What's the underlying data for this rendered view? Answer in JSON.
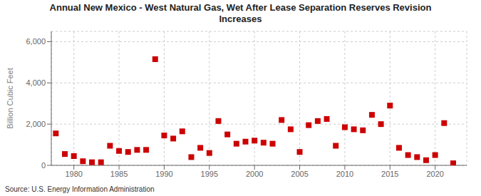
{
  "chart_data": {
    "type": "scatter",
    "title": "Annual New Mexico - West Natural Gas, Wet After Lease Separation Reserves Revision\nIncreases",
    "ylabel": "Billion Cubic Feet",
    "annotations": [
      "Source: U.S. Energy Information Administration"
    ],
    "color": "#cc0000",
    "marker": "square",
    "grid": true,
    "xlim": [
      1977.5,
      2023.5
    ],
    "ylim": [
      0,
      6500
    ],
    "xticks": [
      1980,
      1985,
      1990,
      1995,
      2000,
      2005,
      2010,
      2015,
      2020
    ],
    "yticks": [
      0,
      {
        "value": 2000,
        "label": "2,000"
      },
      {
        "value": 4000,
        "label": "4,000"
      },
      {
        "value": 6000,
        "label": "6,000"
      }
    ],
    "x": [
      1978,
      1979,
      1980,
      1981,
      1982,
      1983,
      1984,
      1985,
      1986,
      1987,
      1988,
      1989,
      1990,
      1991,
      1992,
      1993,
      1994,
      1995,
      1996,
      1997,
      1998,
      1999,
      2000,
      2001,
      2002,
      2003,
      2004,
      2005,
      2006,
      2007,
      2008,
      2009,
      2010,
      2011,
      2012,
      2013,
      2014,
      2015,
      2016,
      2017,
      2018,
      2019,
      2020,
      2021,
      2022
    ],
    "values": [
      1550,
      550,
      450,
      200,
      150,
      150,
      950,
      700,
      650,
      750,
      750,
      5150,
      1450,
      1300,
      1650,
      400,
      850,
      600,
      2150,
      1500,
      1050,
      1150,
      1200,
      1100,
      1050,
      2200,
      1750,
      650,
      1950,
      2150,
      2250,
      950,
      1850,
      1750,
      1700,
      2450,
      2000,
      2900,
      850,
      500,
      400,
      250,
      500,
      2050,
      100
    ]
  }
}
